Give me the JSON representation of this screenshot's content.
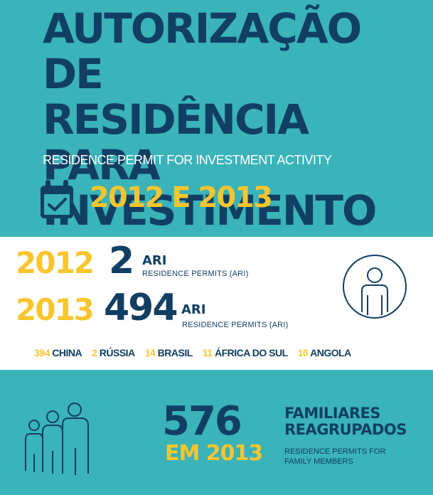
{
  "header": {
    "title_lines": [
      "AUTORIZAÇÃO DE",
      "RESIDÊNCIA PARA",
      "INVESTIMENTO"
    ],
    "subtitle": "RESIDENCE PERMIT FOR INVESTMENT ACTIVITY",
    "years": "2012 E 2013",
    "icon": "calendar-check-icon"
  },
  "stats": {
    "rows": [
      {
        "year": "2012",
        "number": "2",
        "unit": "ARI",
        "note": "RESIDENCE PERMITS (ARI)"
      },
      {
        "year": "2013",
        "number": "494",
        "unit": "ARI",
        "note": "RESIDENCE PERMITS (ARI)"
      }
    ],
    "icon": "person-circle-icon",
    "countries": [
      {
        "num": "394",
        "name": "CHINA"
      },
      {
        "num": "2",
        "name": "RÚSSIA"
      },
      {
        "num": "14",
        "name": "BRASIL"
      },
      {
        "num": "11",
        "name": "ÁFRICA DO SUL"
      },
      {
        "num": "10",
        "name": "ANGOLA"
      }
    ]
  },
  "family": {
    "number": "576",
    "year": "EM 2013",
    "title_lines": [
      "FAMILIARES",
      "REAGRUPADOS"
    ],
    "note_lines": [
      "RESIDENCE PERMITS FOR",
      "FAMILY MEMBERS"
    ],
    "icon": "family-icon"
  },
  "colors": {
    "teal": "#3ab3b9",
    "navy": "#113f63",
    "yellow": "#f7c62f",
    "white": "#ffffff"
  }
}
